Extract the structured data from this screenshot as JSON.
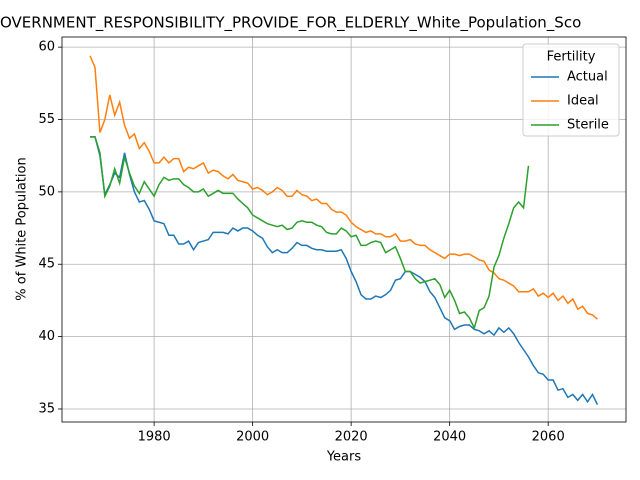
{
  "chart_data": {
    "type": "line",
    "title": "OVERNMENT_RESPONSIBILITY_PROVIDE_FOR_ELDERLY_White_Population_Sco",
    "x_label": "Years",
    "y_label": "% of White Population",
    "legend_title": "Fertility",
    "legend_position": "upper right",
    "grid": true,
    "x": [
      1967,
      1968,
      1969,
      1970,
      1971,
      1972,
      1973,
      1974,
      1975,
      1976,
      1977,
      1978,
      1979,
      1980,
      1981,
      1982,
      1983,
      1984,
      1985,
      1986,
      1987,
      1988,
      1989,
      1990,
      1991,
      1992,
      1993,
      1994,
      1995,
      1996,
      1997,
      1998,
      1999,
      2000,
      2001,
      2002,
      2003,
      2004,
      2005,
      2006,
      2007,
      2008,
      2009,
      2010,
      2011,
      2012,
      2013,
      2014,
      2015,
      2016,
      2017,
      2018,
      2019,
      2020,
      2021,
      2022,
      2023,
      2024,
      2025,
      2026,
      2027,
      2028,
      2029,
      2030,
      2031,
      2032,
      2033,
      2034,
      2035,
      2036,
      2037,
      2038,
      2039,
      2040,
      2041,
      2042,
      2043,
      2044,
      2045,
      2046,
      2047,
      2048,
      2049,
      2050,
      2051,
      2052,
      2053,
      2054,
      2055,
      2056,
      2057,
      2058,
      2059,
      2060,
      2061,
      2062,
      2063,
      2064,
      2065,
      2066,
      2067,
      2068,
      2069,
      2070
    ],
    "xlim": [
      1961.3,
      2075.8
    ],
    "xticks": [
      1980,
      2000,
      2020,
      2040,
      2060
    ],
    "ylim": [
      34.1,
      60.7
    ],
    "yticks": [
      35,
      40,
      45,
      50,
      55,
      60
    ],
    "series": [
      {
        "name": "Actual",
        "color": "#1f77b4",
        "values": [
          53.8,
          53.8,
          52.5,
          49.8,
          50.5,
          51.3,
          51.0,
          52.7,
          51.2,
          50.0,
          49.3,
          49.4,
          48.8,
          48.0,
          47.9,
          47.8,
          47.0,
          47.0,
          46.4,
          46.4,
          46.6,
          46.0,
          46.5,
          46.6,
          46.7,
          47.2,
          47.2,
          47.2,
          47.1,
          47.5,
          47.3,
          47.5,
          47.5,
          47.3,
          47.0,
          46.8,
          46.2,
          45.8,
          46.0,
          45.8,
          45.8,
          46.1,
          46.5,
          46.3,
          46.3,
          46.1,
          46.0,
          46.0,
          45.9,
          45.9,
          45.9,
          46.0,
          45.4,
          44.5,
          43.8,
          42.9,
          42.6,
          42.6,
          42.8,
          42.7,
          42.9,
          43.2,
          43.9,
          44.0,
          44.5,
          44.5,
          44.3,
          44.1,
          43.8,
          43.1,
          42.7,
          42.0,
          41.3,
          41.1,
          40.5,
          40.7,
          40.8,
          40.8,
          40.5,
          40.4,
          40.2,
          40.4,
          40.1,
          40.6,
          40.3,
          40.6,
          40.2,
          39.6,
          39.1,
          38.6,
          38.0,
          37.5,
          37.4,
          37.0,
          37.0,
          36.3,
          36.4,
          35.8,
          36.0,
          35.6,
          36.0,
          35.5,
          36.0,
          35.3
        ]
      },
      {
        "name": "Ideal",
        "color": "#ff7f0e",
        "values": [
          59.4,
          58.6,
          54.1,
          55.0,
          56.7,
          55.3,
          56.2,
          54.6,
          53.7,
          54.0,
          53.0,
          53.4,
          52.8,
          52.0,
          52.0,
          52.4,
          52.0,
          52.3,
          52.3,
          51.4,
          51.7,
          51.6,
          51.8,
          52.0,
          51.3,
          51.5,
          51.4,
          51.1,
          50.9,
          51.2,
          50.8,
          50.7,
          50.6,
          50.2,
          50.3,
          50.1,
          49.8,
          50.0,
          50.3,
          50.1,
          49.7,
          49.7,
          50.1,
          49.8,
          49.7,
          49.4,
          49.5,
          49.2,
          49.2,
          48.8,
          48.6,
          48.6,
          48.4,
          47.9,
          47.6,
          47.4,
          47.2,
          47.3,
          47.1,
          47.1,
          46.9,
          46.9,
          47.1,
          46.6,
          46.6,
          46.7,
          46.4,
          46.3,
          46.3,
          46.0,
          45.8,
          45.6,
          45.4,
          45.7,
          45.7,
          45.6,
          45.7,
          45.7,
          45.5,
          45.3,
          45.2,
          44.6,
          44.4,
          44.0,
          43.9,
          43.7,
          43.5,
          43.1,
          43.1,
          43.1,
          43.3,
          42.8,
          43.0,
          42.7,
          43.0,
          42.5,
          42.8,
          42.3,
          42.6,
          41.9,
          42.1,
          41.6,
          41.5,
          41.2
        ]
      },
      {
        "name": "Sterile",
        "color": "#2ca02c",
        "values": [
          53.8,
          53.8,
          52.7,
          49.7,
          50.4,
          51.6,
          50.6,
          52.4,
          51.3,
          50.4,
          49.9,
          50.7,
          50.2,
          49.7,
          50.5,
          51.0,
          50.8,
          50.9,
          50.9,
          50.5,
          50.3,
          50.0,
          50.0,
          50.2,
          49.7,
          49.9,
          50.1,
          49.9,
          49.9,
          49.9,
          49.5,
          49.2,
          48.9,
          48.4,
          48.2,
          48.0,
          47.8,
          47.7,
          47.6,
          47.7,
          47.4,
          47.5,
          47.9,
          48.0,
          47.9,
          47.9,
          47.7,
          47.6,
          47.2,
          47.1,
          47.1,
          47.5,
          47.3,
          46.9,
          47.0,
          46.3,
          46.3,
          46.5,
          46.6,
          46.5,
          45.8,
          46.0,
          46.2,
          45.4,
          44.5,
          44.5,
          44.0,
          43.7,
          43.8,
          43.9,
          44.0,
          43.6,
          42.7,
          43.2,
          42.5,
          41.6,
          41.7,
          41.3,
          40.6,
          41.8,
          42.0,
          42.8,
          44.8,
          45.6,
          46.8,
          47.8,
          48.9,
          49.3,
          48.9,
          51.8,
          null,
          null,
          null,
          null,
          null,
          null,
          null,
          null,
          null,
          null,
          null,
          null,
          null,
          null
        ]
      }
    ]
  }
}
